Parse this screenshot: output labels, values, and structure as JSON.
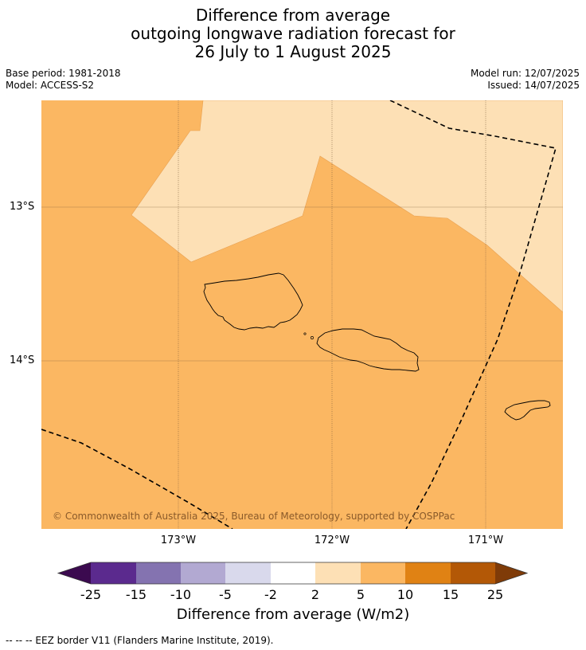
{
  "title": {
    "line1": "Difference from average",
    "line2": "outgoing longwave radiation forecast for",
    "line3": "26 July to 1 August 2025"
  },
  "meta": {
    "base_period": "Base period: 1981-2018",
    "model": "Model: ACCESS-S2",
    "model_run": "Model run: 12/07/2025",
    "issued": "Issued: 14/07/2025"
  },
  "map": {
    "lat_labels": [
      "13°S",
      "14°S"
    ],
    "lon_labels": [
      "173°W",
      "172°W",
      "171°W"
    ],
    "copyright": "© Commonwealth of Australia 2025, Bureau of Meteorology, supported by COSPPac",
    "colors": {
      "band_5_10": "#fbb762",
      "band_2_5": "#fde0b5",
      "coast": "#000000",
      "gridline": "#7a5a3a"
    }
  },
  "colorbar": {
    "ticks": [
      "-25",
      "-15",
      "-10",
      "-5",
      "-2",
      "2",
      "5",
      "10",
      "15",
      "25"
    ],
    "colors": [
      "#3b0a4f",
      "#5b2a8e",
      "#8473b0",
      "#b2a9d2",
      "#d9d9ec",
      "#ffffff",
      "#fde0b5",
      "#fbb762",
      "#e08214",
      "#b35806",
      "#7f3b08"
    ],
    "label": "Difference from average (W/m2)"
  },
  "footnote": "--  --  -- EEZ border V11 (Flanders Marine Institute, 2019)."
}
